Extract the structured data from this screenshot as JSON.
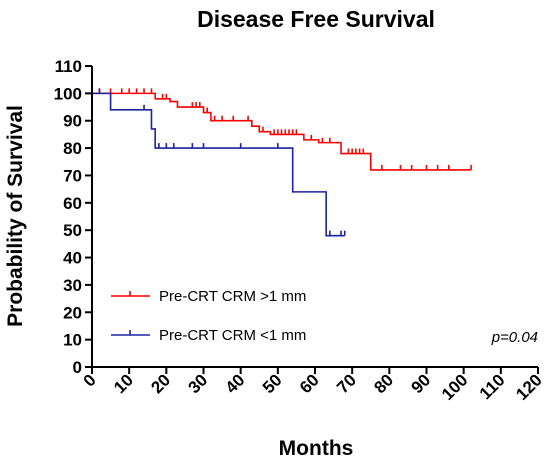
{
  "chart_data": {
    "type": "line",
    "subtype": "kaplan-meier-step",
    "title": "Disease Free Survival",
    "xlabel": "Months",
    "ylabel": "Probability of Survival",
    "xlim": [
      0,
      120
    ],
    "ylim": [
      0,
      110
    ],
    "xticks": [
      0,
      10,
      20,
      30,
      40,
      50,
      60,
      70,
      80,
      90,
      100,
      110,
      120
    ],
    "yticks": [
      0,
      10,
      20,
      30,
      40,
      50,
      60,
      70,
      80,
      90,
      100,
      110
    ],
    "grid": false,
    "legend_position": "bottom-left",
    "annotation": "p=0.04",
    "series": [
      {
        "name": "Pre-CRT CRM >1 mm",
        "color": "#ff0000",
        "steps": [
          [
            0,
            100
          ],
          [
            17,
            98
          ],
          [
            21,
            97
          ],
          [
            23,
            95
          ],
          [
            30,
            93
          ],
          [
            32,
            90
          ],
          [
            43,
            88
          ],
          [
            45,
            86
          ],
          [
            48,
            85
          ],
          [
            57,
            83
          ],
          [
            61,
            82
          ],
          [
            67,
            78
          ],
          [
            75,
            72
          ],
          [
            102,
            72
          ]
        ],
        "censored": [
          [
            2,
            100
          ],
          [
            5,
            100
          ],
          [
            8,
            100
          ],
          [
            10,
            100
          ],
          [
            12,
            100
          ],
          [
            14,
            100
          ],
          [
            16,
            100
          ],
          [
            19,
            98
          ],
          [
            20,
            98
          ],
          [
            27,
            95
          ],
          [
            28,
            95
          ],
          [
            29,
            95
          ],
          [
            31,
            93
          ],
          [
            33,
            90
          ],
          [
            35,
            90
          ],
          [
            38,
            90
          ],
          [
            42,
            90
          ],
          [
            46,
            86
          ],
          [
            49,
            85
          ],
          [
            50,
            85
          ],
          [
            51,
            85
          ],
          [
            52,
            85
          ],
          [
            53,
            85
          ],
          [
            54,
            85
          ],
          [
            55,
            85
          ],
          [
            59,
            83
          ],
          [
            62,
            82
          ],
          [
            64,
            82
          ],
          [
            69,
            78
          ],
          [
            70,
            78
          ],
          [
            71,
            78
          ],
          [
            72,
            78
          ],
          [
            73,
            78
          ],
          [
            78,
            72
          ],
          [
            83,
            72
          ],
          [
            86,
            72
          ],
          [
            90,
            72
          ],
          [
            93,
            72
          ],
          [
            96,
            72
          ],
          [
            102,
            72
          ]
        ]
      },
      {
        "name": "Pre-CRT CRM <1 mm",
        "color": "#1a23a0",
        "steps": [
          [
            0,
            100
          ],
          [
            5,
            94
          ],
          [
            16,
            87
          ],
          [
            17,
            80
          ],
          [
            54,
            64
          ],
          [
            63,
            48
          ],
          [
            68,
            48
          ]
        ],
        "censored": [
          [
            2,
            100
          ],
          [
            14,
            94
          ],
          [
            18,
            80
          ],
          [
            20,
            80
          ],
          [
            22,
            80
          ],
          [
            27,
            80
          ],
          [
            30,
            80
          ],
          [
            40,
            80
          ],
          [
            50,
            80
          ],
          [
            64,
            48
          ],
          [
            67,
            48
          ],
          [
            68,
            48
          ]
        ]
      }
    ]
  }
}
